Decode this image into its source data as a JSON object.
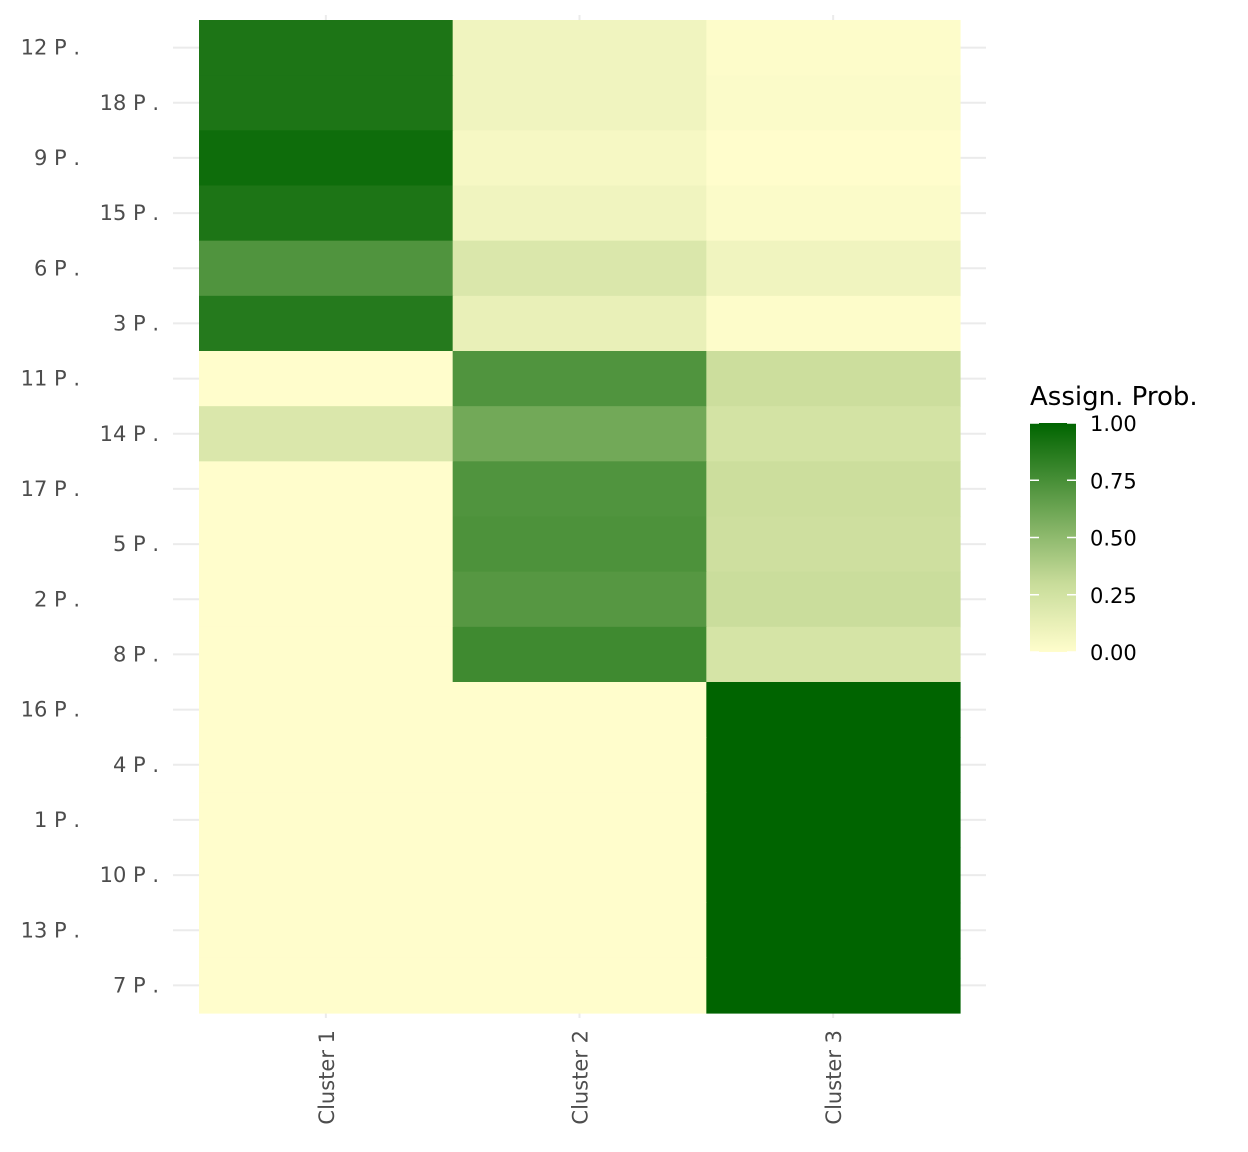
{
  "chart_data": {
    "type": "heatmap",
    "title": "",
    "xlabel": "",
    "ylabel": "",
    "x_categories": [
      "Cluster 1",
      "Cluster 2",
      "Cluster 3"
    ],
    "y_categories": [
      "12 P .",
      "18 P .",
      "9 P .",
      "15 P .",
      "6 P .",
      "3 P .",
      "11 P .",
      "14 P .",
      "17 P .",
      "5 P .",
      "2 P .",
      "8 P .",
      "16 P .",
      "4 P .",
      "1 P .",
      "10 P .",
      "13 P .",
      "7 P ."
    ],
    "values": [
      [
        0.9,
        0.08,
        0.01
      ],
      [
        0.9,
        0.08,
        0.02
      ],
      [
        0.95,
        0.05,
        0.0
      ],
      [
        0.9,
        0.08,
        0.02
      ],
      [
        0.72,
        0.2,
        0.08
      ],
      [
        0.87,
        0.12,
        0.01
      ],
      [
        0.0,
        0.72,
        0.28
      ],
      [
        0.2,
        0.6,
        0.24
      ],
      [
        0.0,
        0.72,
        0.28
      ],
      [
        0.0,
        0.73,
        0.27
      ],
      [
        0.0,
        0.7,
        0.29
      ],
      [
        0.0,
        0.78,
        0.23
      ],
      [
        0.0,
        0.0,
        1.0
      ],
      [
        0.0,
        0.0,
        1.0
      ],
      [
        0.0,
        0.0,
        1.0
      ],
      [
        0.0,
        0.0,
        1.0
      ],
      [
        0.0,
        0.0,
        1.0
      ],
      [
        0.0,
        0.0,
        1.0
      ]
    ],
    "legend": {
      "title": "Assign. Prob.",
      "ticks": [
        "1.00",
        "0.75",
        "0.50",
        "0.25",
        "0.00"
      ],
      "tick_values": [
        1.0,
        0.75,
        0.5,
        0.25,
        0.0
      ],
      "position": "right"
    },
    "color_scale": {
      "low": "#fffdcc",
      "mid": "#c8dc9a",
      "high": "#006400"
    },
    "grid": true,
    "grid_color": "#ebebeb",
    "tick_label_color": "#4d4d4d"
  }
}
